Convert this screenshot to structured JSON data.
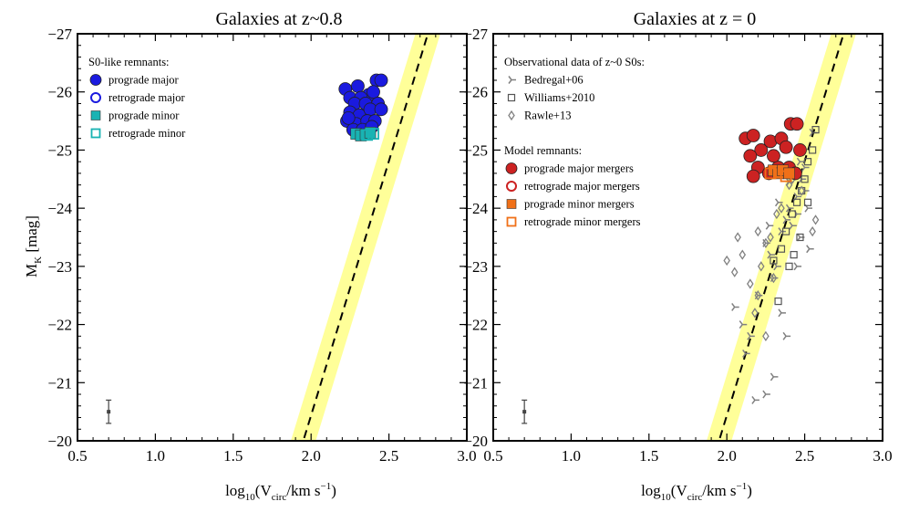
{
  "figure": {
    "ylabel_main": "M",
    "ylabel_sub": "K",
    "ylabel_unit": " [mag]",
    "xlabel_pre": "log",
    "xlabel_sub1": "10",
    "xlabel_mid": "(V",
    "xlabel_sub2": "circ",
    "xlabel_post": "/km s",
    "xlabel_sup": "−1",
    "xlabel_close": ")"
  },
  "colors": {
    "major": "#1a1adf",
    "minor": "#19b3b3",
    "z0_major": "#cc2222",
    "z0_minor": "#f07018",
    "obs": "#808080",
    "band": "#ffff99"
  },
  "chart_data": [
    {
      "type": "scatter",
      "title": "Galaxies at z~0.8",
      "xlim": [
        0.5,
        3.0
      ],
      "ylim": [
        -20,
        -27
      ],
      "y_inverted": true,
      "xticks": [
        "0.5",
        "1.0",
        "1.5",
        "2.0",
        "2.5",
        "3.0"
      ],
      "yticks": [
        "−20",
        "−21",
        "−22",
        "−23",
        "−24",
        "−25",
        "−26",
        "−27"
      ],
      "relation": {
        "x": [
          1.95,
          2.75
        ],
        "y": [
          -20,
          -27
        ],
        "style": "dashed",
        "band_width_dex": 0.08
      },
      "errorbar": {
        "x": 0.7,
        "y": -20.5,
        "yerr": 0.2
      },
      "legend": {
        "title": "S0-like remnants:",
        "position": "top-left"
      },
      "series": [
        {
          "name": "prograde major",
          "marker": "circle-filled",
          "points": [
            [
              2.22,
              -26.05
            ],
            [
              2.3,
              -26.1
            ],
            [
              2.37,
              -25.95
            ],
            [
              2.42,
              -26.2
            ],
            [
              2.45,
              -26.2
            ],
            [
              2.25,
              -25.9
            ],
            [
              2.32,
              -25.9
            ],
            [
              2.4,
              -26.0
            ],
            [
              2.28,
              -25.8
            ],
            [
              2.35,
              -25.8
            ],
            [
              2.43,
              -25.8
            ],
            [
              2.25,
              -25.65
            ],
            [
              2.31,
              -25.6
            ],
            [
              2.38,
              -25.7
            ],
            [
              2.45,
              -25.7
            ],
            [
              2.23,
              -25.5
            ],
            [
              2.29,
              -25.45
            ],
            [
              2.36,
              -25.5
            ],
            [
              2.41,
              -25.5
            ],
            [
              2.27,
              -25.35
            ],
            [
              2.33,
              -25.35
            ],
            [
              2.39,
              -25.4
            ],
            [
              2.24,
              -25.55
            ]
          ]
        },
        {
          "name": "retrograde major",
          "marker": "circle-open",
          "points": []
        },
        {
          "name": "prograde minor",
          "marker": "square-filled",
          "points": [
            [
              2.29,
              -25.28
            ],
            [
              2.32,
              -25.25
            ],
            [
              2.35,
              -25.27
            ],
            [
              2.38,
              -25.3
            ]
          ]
        },
        {
          "name": "retrograde minor",
          "marker": "square-open",
          "points": [
            [
              2.36,
              -25.26
            ],
            [
              2.4,
              -25.28
            ]
          ]
        }
      ]
    },
    {
      "type": "scatter",
      "title": "Galaxies at z = 0",
      "xlim": [
        0.5,
        3.0
      ],
      "ylim": [
        -20,
        -27
      ],
      "y_inverted": true,
      "xticks": [
        "0.5",
        "1.0",
        "1.5",
        "2.0",
        "2.5",
        "3.0"
      ],
      "yticks": [
        "−20",
        "−21",
        "−22",
        "−23",
        "−24",
        "−25",
        "−26",
        "−27"
      ],
      "relation": {
        "x": [
          1.95,
          2.75
        ],
        "y": [
          -20,
          -27
        ],
        "style": "dashed",
        "band_width_dex": 0.08
      },
      "errorbar": {
        "x": 0.7,
        "y": -20.5,
        "yerr": 0.2
      },
      "legend": {
        "title": "Observational data of z~0 S0s:",
        "title2": "Model remnants:",
        "position": "top-left"
      },
      "series": [
        {
          "name": "Bedregal+06",
          "marker": "tri",
          "points": [
            [
              2.05,
              -22.3
            ],
            [
              2.1,
              -22.0
            ],
            [
              2.15,
              -21.8
            ],
            [
              2.12,
              -21.5
            ],
            [
              2.3,
              -21.1
            ],
            [
              2.25,
              -20.8
            ],
            [
              2.18,
              -20.7
            ],
            [
              2.25,
              -23.4
            ],
            [
              2.28,
              -23.2
            ],
            [
              2.3,
              -22.8
            ],
            [
              2.32,
              -23.0
            ],
            [
              2.35,
              -23.6
            ],
            [
              2.38,
              -23.8
            ],
            [
              2.4,
              -24.0
            ],
            [
              2.42,
              -23.7
            ],
            [
              2.45,
              -24.2
            ],
            [
              2.45,
              -23.9
            ],
            [
              2.47,
              -23.5
            ],
            [
              2.48,
              -24.5
            ],
            [
              2.5,
              -24.3
            ],
            [
              2.5,
              -24.7
            ],
            [
              2.52,
              -24.0
            ],
            [
              2.53,
              -23.3
            ],
            [
              2.45,
              -23.0
            ],
            [
              2.35,
              -22.2
            ],
            [
              2.38,
              -21.8
            ],
            [
              2.27,
              -23.7
            ],
            [
              2.33,
              -24.1
            ],
            [
              2.4,
              -24.45
            ],
            [
              2.43,
              -24.6
            ],
            [
              2.47,
              -24.8
            ],
            [
              2.55,
              -25.3
            ],
            [
              2.48,
              -25.0
            ],
            [
              2.2,
              -22.5
            ]
          ]
        },
        {
          "name": "Williams+2010",
          "marker": "square-open-small",
          "points": [
            [
              2.3,
              -23.1
            ],
            [
              2.35,
              -23.3
            ],
            [
              2.38,
              -23.6
            ],
            [
              2.4,
              -23.0
            ],
            [
              2.42,
              -23.9
            ],
            [
              2.45,
              -24.1
            ],
            [
              2.48,
              -24.3
            ],
            [
              2.5,
              -24.5
            ],
            [
              2.52,
              -24.8
            ],
            [
              2.55,
              -25.0
            ],
            [
              2.57,
              -25.35
            ],
            [
              2.33,
              -22.4
            ],
            [
              2.43,
              -23.2
            ],
            [
              2.47,
              -23.5
            ],
            [
              2.52,
              -24.1
            ]
          ]
        },
        {
          "name": "Rawle+13",
          "marker": "diamond-open",
          "points": [
            [
              2.0,
              -23.1
            ],
            [
              2.05,
              -22.9
            ],
            [
              2.1,
              -23.2
            ],
            [
              2.15,
              -22.7
            ],
            [
              2.2,
              -22.5
            ],
            [
              2.22,
              -23.0
            ],
            [
              2.25,
              -23.4
            ],
            [
              2.28,
              -23.5
            ],
            [
              2.32,
              -23.9
            ],
            [
              2.35,
              -24.0
            ],
            [
              2.4,
              -24.4
            ],
            [
              2.42,
              -24.5
            ],
            [
              2.48,
              -24.3
            ],
            [
              2.57,
              -23.8
            ],
            [
              2.55,
              -23.6
            ],
            [
              2.3,
              -22.8
            ],
            [
              2.18,
              -22.2
            ],
            [
              2.25,
              -21.8
            ],
            [
              2.07,
              -23.5
            ],
            [
              2.2,
              -23.6
            ]
          ]
        },
        {
          "name": "prograde major mergers",
          "marker": "circle-filled",
          "points": [
            [
              2.12,
              -25.2
            ],
            [
              2.17,
              -25.25
            ],
            [
              2.22,
              -25.0
            ],
            [
              2.28,
              -25.15
            ],
            [
              2.35,
              -25.2
            ],
            [
              2.41,
              -25.45
            ],
            [
              2.45,
              -25.45
            ],
            [
              2.47,
              -25.0
            ],
            [
              2.15,
              -24.9
            ],
            [
              2.2,
              -24.7
            ],
            [
              2.27,
              -24.6
            ],
            [
              2.33,
              -24.7
            ],
            [
              2.4,
              -24.7
            ],
            [
              2.44,
              -24.6
            ],
            [
              2.17,
              -24.55
            ],
            [
              2.3,
              -24.9
            ],
            [
              2.38,
              -25.05
            ]
          ]
        },
        {
          "name": "retrograde major mergers",
          "marker": "circle-open",
          "points": []
        },
        {
          "name": "prograde minor mergers",
          "marker": "square-filled",
          "points": [
            [
              2.3,
              -24.65
            ],
            [
              2.33,
              -24.6
            ],
            [
              2.36,
              -24.65
            ],
            [
              2.4,
              -24.6
            ]
          ]
        },
        {
          "name": "retrograde minor mergers",
          "marker": "square-open",
          "points": [
            [
              2.28,
              -24.6
            ],
            [
              2.38,
              -24.55
            ]
          ]
        }
      ]
    }
  ]
}
